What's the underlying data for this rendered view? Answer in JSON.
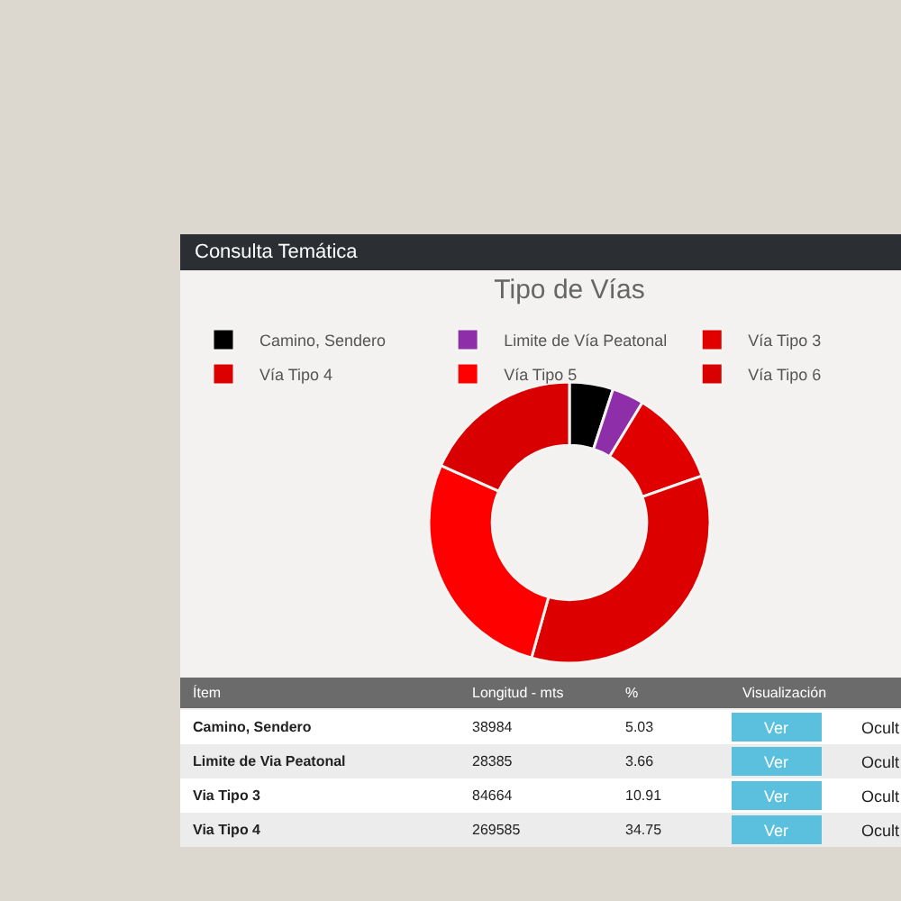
{
  "chart_data": {
    "type": "donut",
    "title": "Tipo de Vías",
    "categories": [
      "Camino, Sendero",
      "Limite de Vía Peatonal",
      "Vía Tipo 3",
      "Vía Tipo 4",
      "Vía Tipo 5",
      "Vía Tipo 6"
    ],
    "values": [
      5.03,
      3.66,
      10.91,
      34.75,
      27.3,
      18.35
    ],
    "colors": [
      "#000000",
      "#8e2ea8",
      "#e00000",
      "#dd0000",
      "#ff0000",
      "#d80000"
    ],
    "legend": "top",
    "annotations": [
      "Consulta Temática",
      "Ítem",
      "Longitud - mts",
      "%",
      "Visualización",
      "Camino, Sendero",
      "38984",
      "5.03",
      "Ver",
      "Ocult",
      "Limite de Via Peatonal",
      "28385",
      "3.66",
      "Ver",
      "Ocult",
      "Via Tipo 3",
      "84664",
      "10.91",
      "Ver",
      "Ocult",
      "Via Tipo 4",
      "269585",
      "34.75",
      "Ver",
      "Ocult"
    ]
  }
}
